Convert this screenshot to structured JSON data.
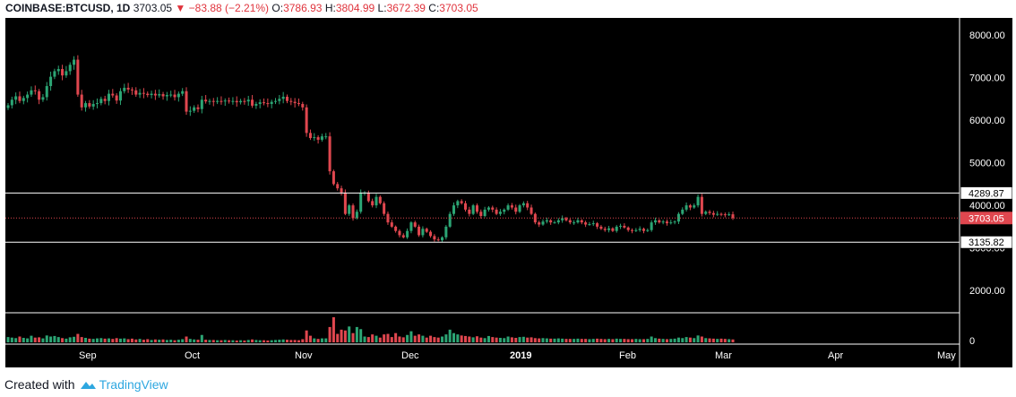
{
  "header": {
    "symbol": "COINBASE:BTCUSD, 1D",
    "last": "3703.05",
    "change_icon": "triangle-down-icon",
    "change": "−83.88 (−2.21%)",
    "o_label": "O:",
    "o": "3786.93",
    "h_label": "H:",
    "h": "3804.99",
    "l_label": "L:",
    "l": "3672.39",
    "c_label": "C:",
    "c": "3703.05"
  },
  "footer": {
    "created_with": "Created with",
    "brand": "TradingView",
    "brand_icon": "tradingview-cloud-icon"
  },
  "colors": {
    "up": "#2ca574",
    "down": "#e0474f",
    "background": "#000000",
    "axis_text": "#ffffff",
    "grid": "#ffffff",
    "current_price_tag": "#e0474f",
    "red": "#e0343d",
    "brand": "#2ea7e0"
  },
  "chart_data": {
    "type": "candlestick",
    "title": "COINBASE:BTCUSD, 1D",
    "xlabel": "",
    "ylabel": "",
    "price_ylim": [
      1500,
      8400
    ],
    "price_ticks": [
      2000,
      3000,
      4000,
      5000,
      6000,
      7000,
      8000
    ],
    "price_tick_labels": [
      "2000.00",
      "3000.00",
      "4000.00",
      "5000.00",
      "6000.00",
      "7000.00",
      "8000.00"
    ],
    "x_tick_labels": [
      "Sep",
      "Oct",
      "Nov",
      "Dec",
      "2019",
      "Feb",
      "Mar",
      "Apr",
      "May"
    ],
    "volume_tick_labels": [
      "0"
    ],
    "horizontal_levels": [
      {
        "value": 4289.87,
        "label": "4289.87"
      },
      {
        "value": 3135.82,
        "label": "3135.82"
      }
    ],
    "current_price": {
      "value": 3703.05,
      "label": "3703.05"
    },
    "grid": false,
    "legend": "none",
    "closes": [
      6350,
      6480,
      6560,
      6450,
      6520,
      6600,
      6700,
      6680,
      6480,
      6540,
      6800,
      7020,
      7150,
      7200,
      7050,
      7150,
      7300,
      7420,
      6600,
      6300,
      6400,
      6320,
      6380,
      6400,
      6500,
      6450,
      6620,
      6580,
      6460,
      6680,
      6760,
      6720,
      6700,
      6600,
      6640,
      6620,
      6590,
      6620,
      6580,
      6610,
      6560,
      6590,
      6600,
      6540,
      6620,
      6680,
      6200,
      6220,
      6300,
      6260,
      6480,
      6440,
      6450,
      6430,
      6450,
      6440,
      6460,
      6440,
      6450,
      6420,
      6450,
      6440,
      6480,
      6340,
      6380,
      6420,
      6400,
      6380,
      6430,
      6450,
      6500,
      6550,
      6450,
      6430,
      6400,
      6380,
      6300,
      5700,
      5580,
      5600,
      5540,
      5620,
      5620,
      4800,
      4500,
      4400,
      4300,
      3800,
      4000,
      3700,
      3850,
      4300,
      4300,
      4100,
      4000,
      4200,
      4050,
      3800,
      3600,
      3500,
      3400,
      3300,
      3250,
      3400,
      3600,
      3500,
      3300,
      3450,
      3380,
      3280,
      3200,
      3180,
      3250,
      3500,
      3800,
      4000,
      4100,
      4050,
      3900,
      3800,
      4000,
      3850,
      3750,
      3900,
      3950,
      3900,
      3800,
      3850,
      3900,
      4000,
      3950,
      3850,
      4000,
      4050,
      3950,
      3800,
      3600,
      3550,
      3620,
      3650,
      3600,
      3600,
      3650,
      3700,
      3650,
      3600,
      3600,
      3650,
      3600,
      3550,
      3560,
      3580,
      3500,
      3450,
      3420,
      3460,
      3400,
      3500,
      3520,
      3480,
      3420,
      3400,
      3420,
      3450,
      3400,
      3420,
      3600,
      3650,
      3600,
      3620,
      3580,
      3600,
      3620,
      3800,
      3900,
      4000,
      3950,
      4000,
      4200,
      3800,
      3850,
      3820,
      3780,
      3800,
      3790,
      3780,
      3790,
      3703
    ],
    "volumes": [
      2.0,
      1.8,
      1.6,
      2.2,
      1.7,
      1.5,
      2.5,
      1.8,
      1.9,
      1.5,
      2.6,
      2.2,
      2.4,
      2.0,
      1.6,
      1.4,
      1.9,
      2.1,
      3.2,
      2.0,
      1.7,
      1.4,
      1.3,
      1.5,
      1.6,
      1.4,
      1.5,
      1.3,
      1.6,
      1.4,
      1.5,
      1.2,
      1.4,
      1.1,
      1.3,
      1.0,
      1.2,
      0.9,
      1.1,
      1.0,
      1.1,
      0.9,
      1.0,
      0.8,
      1.0,
      1.2,
      2.2,
      1.3,
      1.1,
      1.0,
      2.8,
      1.0,
      0.9,
      0.9,
      0.8,
      0.8,
      0.9,
      0.8,
      0.8,
      0.7,
      0.8,
      0.7,
      0.9,
      1.1,
      0.9,
      0.8,
      0.8,
      0.7,
      0.8,
      0.9,
      1.0,
      1.1,
      1.0,
      0.9,
      0.9,
      0.8,
      1.2,
      4.5,
      2.5,
      1.5,
      1.3,
      1.5,
      1.5,
      5.8,
      9.5,
      3.2,
      4.8,
      4.5,
      6.0,
      3.5,
      5.8,
      5.0,
      2.2,
      2.0,
      3.0,
      2.5,
      1.8,
      3.0,
      3.2,
      2.0,
      3.5,
      2.2,
      1.9,
      2.8,
      4.2,
      2.5,
      3.0,
      2.5,
      1.8,
      2.5,
      2.0,
      1.8,
      2.2,
      3.0,
      4.8,
      3.5,
      3.0,
      2.6,
      2.4,
      2.2,
      1.9,
      2.3,
      1.8,
      1.6,
      2.4,
      2.0,
      1.8,
      1.7,
      1.6,
      2.2,
      1.9,
      1.7,
      2.0,
      2.1,
      1.8,
      1.9,
      1.6,
      1.5,
      1.6,
      1.5,
      1.4,
      1.4,
      1.5,
      1.4,
      1.3,
      1.3,
      1.3,
      1.4,
      1.3,
      1.3,
      1.2,
      1.3,
      1.4,
      1.3,
      1.2,
      1.3,
      1.2,
      1.4,
      1.3,
      1.3,
      1.2,
      1.2,
      1.3,
      1.2,
      1.2,
      1.3,
      2.2,
      1.6,
      1.4,
      1.3,
      1.2,
      1.3,
      1.4,
      1.8,
      1.6,
      2.0,
      1.8,
      1.6,
      2.6,
      2.2,
      1.6,
      1.5,
      1.4,
      1.3,
      1.4,
      1.3,
      1.2,
      1.1
    ]
  }
}
